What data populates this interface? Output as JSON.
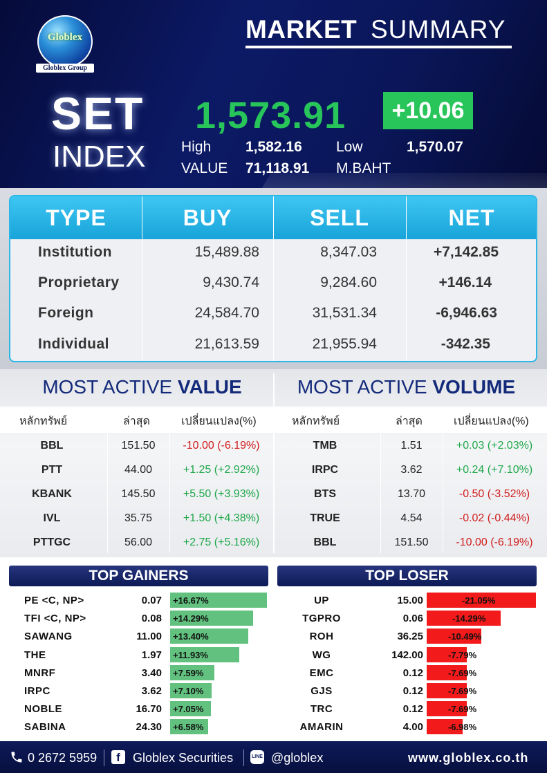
{
  "header": {
    "logo_name": "Globlex",
    "logo_group": "Globlex Group",
    "title_bold": "MARKET",
    "title_light": "SUMMARY",
    "set_label": "SET",
    "index_label": "INDEX",
    "index_value": "1,573.91",
    "change": "+10.06",
    "high_label": "High",
    "high_value": "1,582.16",
    "low_label": "Low",
    "low_value": "1,570.07",
    "value_label": "VALUE",
    "value_amount": "71,118.91",
    "value_unit": "M.BAHT",
    "accent_green": "#27c55a"
  },
  "investor_table": {
    "headers": [
      "TYPE",
      "BUY",
      "SELL",
      "NET"
    ],
    "rows": [
      {
        "type": "Institution",
        "buy": "15,489.88",
        "sell": "8,347.03",
        "net": "+7,142.85",
        "dir": "pos"
      },
      {
        "type": "Proprietary",
        "buy": "9,430.74",
        "sell": "9,284.60",
        "net": "+146.14",
        "dir": "pos"
      },
      {
        "type": "Foreign",
        "buy": "24,584.70",
        "sell": "31,531.34",
        "net": "-6,946.63",
        "dir": "neg"
      },
      {
        "type": "Individual",
        "buy": "21,613.59",
        "sell": "21,955.94",
        "net": "-342.35",
        "dir": "neg"
      }
    ]
  },
  "most_active_value": {
    "title_light": "MOST ACTIVE",
    "title_bold": "VALUE",
    "headers": [
      "หลักทรัพย์",
      "ล่าสุด",
      "เปลี่ยนแปลง(%)"
    ],
    "rows": [
      {
        "symbol": "BBL",
        "last": "151.50",
        "change": "-10.00 (-6.19%)",
        "dir": "down"
      },
      {
        "symbol": "PTT",
        "last": "44.00",
        "change": "+1.25 (+2.92%)",
        "dir": "up"
      },
      {
        "symbol": "KBANK",
        "last": "145.50",
        "change": "+5.50 (+3.93%)",
        "dir": "up"
      },
      {
        "symbol": "IVL",
        "last": "35.75",
        "change": "+1.50 (+4.38%)",
        "dir": "up"
      },
      {
        "symbol": "PTTGC",
        "last": "56.00",
        "change": "+2.75 (+5.16%)",
        "dir": "up"
      }
    ]
  },
  "most_active_volume": {
    "title_light": "MOST ACTIVE",
    "title_bold": "VOLUME",
    "headers": [
      "หลักทรัพย์",
      "ล่าสุด",
      "เปลี่ยนแปลง(%)"
    ],
    "rows": [
      {
        "symbol": "TMB",
        "last": "1.51",
        "change": "+0.03 (+2.03%)",
        "dir": "up"
      },
      {
        "symbol": "IRPC",
        "last": "3.62",
        "change": "+0.24 (+7.10%)",
        "dir": "up"
      },
      {
        "symbol": "BTS",
        "last": "13.70",
        "change": "-0.50 (-3.52%)",
        "dir": "down"
      },
      {
        "symbol": "TRUE",
        "last": "4.54",
        "change": "-0.02 (-0.44%)",
        "dir": "down"
      },
      {
        "symbol": "BBL",
        "last": "151.50",
        "change": "-10.00 (-6.19%)",
        "dir": "down"
      }
    ]
  },
  "top_gainers": {
    "title": "TOP GAINERS",
    "rows": [
      {
        "symbol": "PE <C, NP>",
        "price": "0.07",
        "pct": "+16.67%",
        "pct_value": 16.67
      },
      {
        "symbol": "TFI <C, NP>",
        "price": "0.08",
        "pct": "+14.29%",
        "pct_value": 14.29
      },
      {
        "symbol": "SAWANG",
        "price": "11.00",
        "pct": "+13.40%",
        "pct_value": 13.4
      },
      {
        "symbol": "THE",
        "price": "1.97",
        "pct": "+11.93%",
        "pct_value": 11.93
      },
      {
        "symbol": "MNRF",
        "price": "3.40",
        "pct": "+7.59%",
        "pct_value": 7.59
      },
      {
        "symbol": "IRPC",
        "price": "3.62",
        "pct": "+7.10%",
        "pct_value": 7.1
      },
      {
        "symbol": "NOBLE",
        "price": "16.70",
        "pct": "+7.05%",
        "pct_value": 7.05
      },
      {
        "symbol": "SABINA",
        "price": "24.30",
        "pct": "+6.58%",
        "pct_value": 6.58
      }
    ]
  },
  "top_loser": {
    "title": "TOP LOSER",
    "rows": [
      {
        "symbol": "UP",
        "price": "15.00",
        "pct": "-21.05%",
        "pct_value": 21.05
      },
      {
        "symbol": "TGPRO",
        "price": "0.06",
        "pct": "-14.29%",
        "pct_value": 14.29
      },
      {
        "symbol": "ROH",
        "price": "36.25",
        "pct": "-10.49%",
        "pct_value": 10.49
      },
      {
        "symbol": "WG",
        "price": "142.00",
        "pct": "-7.79%",
        "pct_value": 7.79
      },
      {
        "symbol": "EMC",
        "price": "0.12",
        "pct": "-7.69%",
        "pct_value": 7.69
      },
      {
        "symbol": "GJS",
        "price": "0.12",
        "pct": "-7.69%",
        "pct_value": 7.69
      },
      {
        "symbol": "TRC",
        "price": "0.12",
        "pct": "-7.69%",
        "pct_value": 7.69
      },
      {
        "symbol": "AMARIN",
        "price": "4.00",
        "pct": "-6.98%",
        "pct_value": 6.98
      }
    ]
  },
  "footer": {
    "phone": "0 2672 5959",
    "facebook": "Globlex Securities",
    "line": "@globlex",
    "line_icon_text": "LINE",
    "website": "www.globlex.co.th",
    "icons": [
      "phone-icon",
      "facebook-icon",
      "line-icon"
    ]
  }
}
